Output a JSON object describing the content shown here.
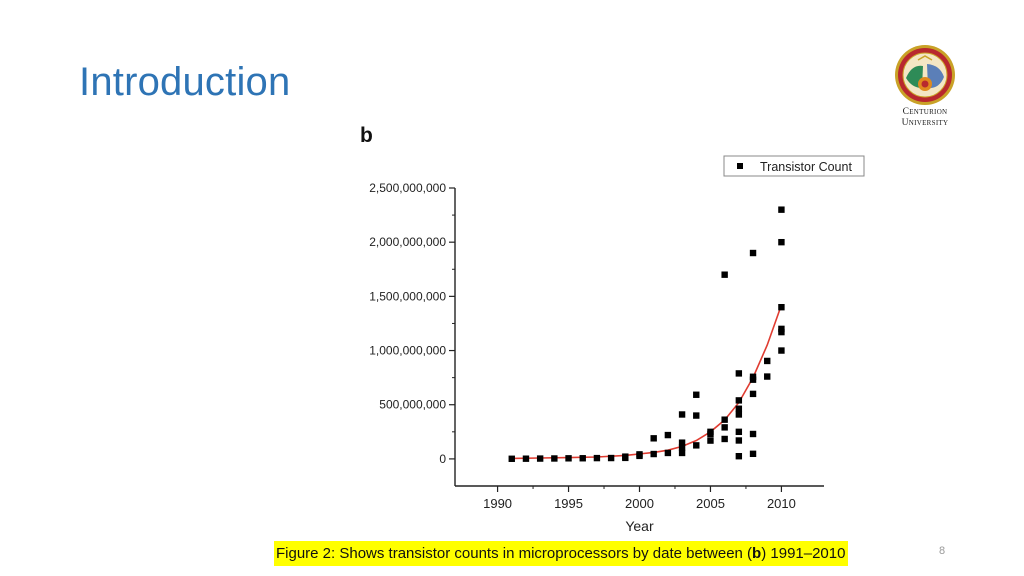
{
  "slide": {
    "title": "Introduction",
    "page_number": "8"
  },
  "logo": {
    "line1": "Centurion",
    "line2": "University"
  },
  "figure": {
    "panel_label": "b",
    "caption_prefix": "Figure 2: Shows transistor counts in microprocessors by date between (",
    "caption_bold": "b",
    "caption_suffix": ") 1991–2010"
  },
  "colors": {
    "title": "#2E74B5",
    "trend": "#E03C31",
    "caption_highlight": "#FFFF00",
    "marker": "#000000"
  },
  "chart_data": {
    "type": "scatter",
    "xlabel": "Year",
    "ylabel": "",
    "xlim": [
      1987,
      2013
    ],
    "ylim": [
      -250000000,
      2500000000
    ],
    "xticks": [
      1990,
      1995,
      2000,
      2005,
      2010
    ],
    "xtick_labels": [
      "1990",
      "1995",
      "2000",
      "2005",
      "2010"
    ],
    "yticks": [
      0,
      500000000,
      1000000000,
      1500000000,
      2000000000,
      2500000000
    ],
    "ytick_labels": [
      "0",
      "500,000,000",
      "1,000,000,000",
      "1,500,000,000",
      "2,000,000,000",
      "2,500,000,000"
    ],
    "legend": {
      "label": "Transistor Count",
      "placement": "top-right"
    },
    "grid": false,
    "series": [
      {
        "name": "Transistor Count",
        "points": [
          [
            1991,
            1200000
          ],
          [
            1992,
            2000000
          ],
          [
            1993,
            3100000
          ],
          [
            1994,
            4000000
          ],
          [
            1995,
            5500000
          ],
          [
            1996,
            6000000
          ],
          [
            1997,
            7500000
          ],
          [
            1998,
            8000000
          ],
          [
            1999,
            9500000
          ],
          [
            1999,
            21000000
          ],
          [
            2000,
            28000000
          ],
          [
            2000,
            42000000
          ],
          [
            2001,
            45000000
          ],
          [
            2001,
            190000000
          ],
          [
            2002,
            55000000
          ],
          [
            2002,
            220000000
          ],
          [
            2003,
            55000000
          ],
          [
            2003,
            106000000
          ],
          [
            2003,
            150000000
          ],
          [
            2003,
            410000000
          ],
          [
            2004,
            125000000
          ],
          [
            2004,
            400000000
          ],
          [
            2004,
            592000000
          ],
          [
            2005,
            169000000
          ],
          [
            2005,
            230000000
          ],
          [
            2005,
            250000000
          ],
          [
            2006,
            184000000
          ],
          [
            2006,
            291000000
          ],
          [
            2006,
            362000000
          ],
          [
            2006,
            1700000000
          ],
          [
            2007,
            25000000
          ],
          [
            2007,
            170000000
          ],
          [
            2007,
            250000000
          ],
          [
            2007,
            410000000
          ],
          [
            2007,
            463000000
          ],
          [
            2007,
            540000000
          ],
          [
            2007,
            789000000
          ],
          [
            2008,
            47000000
          ],
          [
            2008,
            230000000
          ],
          [
            2008,
            600000000
          ],
          [
            2008,
            731000000
          ],
          [
            2008,
            758000000
          ],
          [
            2008,
            1900000000
          ],
          [
            2009,
            760000000
          ],
          [
            2009,
            904000000
          ],
          [
            2010,
            1000000000
          ],
          [
            2010,
            1170000000
          ],
          [
            2010,
            1200000000
          ],
          [
            2010,
            1400000000
          ],
          [
            2010,
            2000000000
          ],
          [
            2010,
            2300000000
          ]
        ]
      }
    ],
    "trend": {
      "name": "Exponential fit",
      "x": [
        1991,
        1993,
        1995,
        1997,
        1999,
        2001,
        2002,
        2003,
        2004,
        2005,
        2006,
        2007,
        2008,
        2009,
        2010
      ],
      "y": [
        5000000,
        8000000,
        12000000,
        18000000,
        32000000,
        60000000,
        80000000,
        115000000,
        170000000,
        250000000,
        360000000,
        520000000,
        750000000,
        1050000000,
        1420000000
      ]
    }
  }
}
